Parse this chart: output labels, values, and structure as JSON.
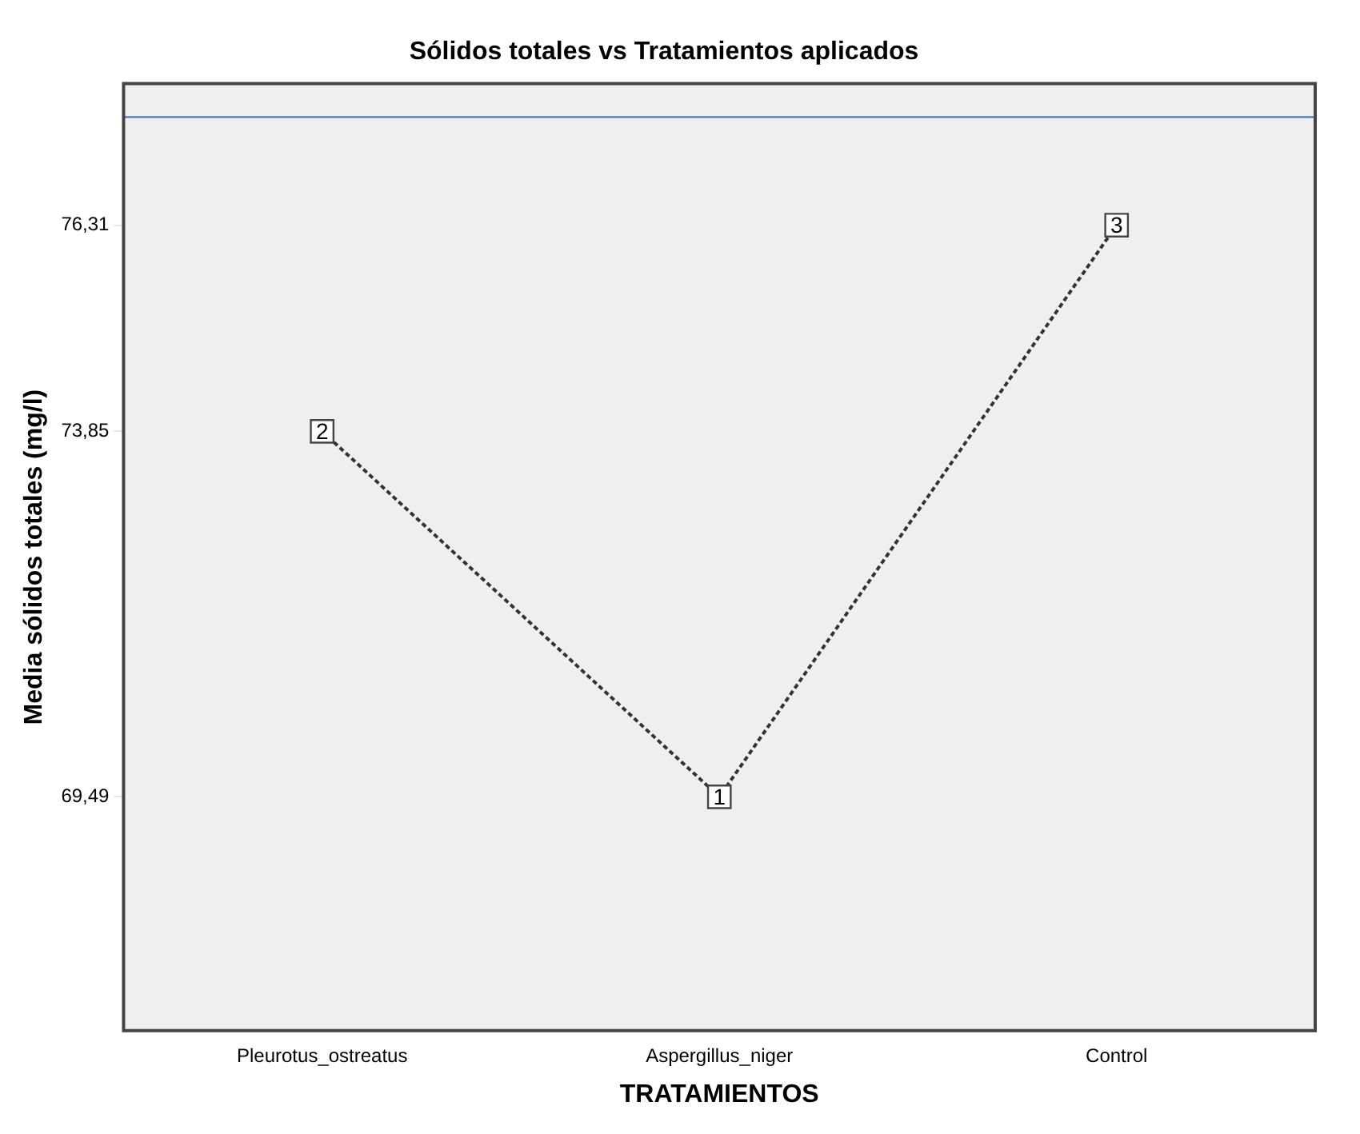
{
  "chart_data": {
    "type": "line",
    "title": "Sólidos totales vs Tratamientos aplicados",
    "xlabel": "TRATAMIENTOS",
    "ylabel": "Media sólidos totales (mg/l)",
    "categories": [
      "Pleurotus_ostreatus",
      "Aspergillus_niger",
      "Control"
    ],
    "series": [
      {
        "color": "#333333",
        "values": [
          73.85,
          69.49,
          76.31
        ]
      }
    ],
    "ylim": [
      66.7,
      78.0
    ],
    "yticks": [
      {
        "value": 69.49,
        "label": "69,49"
      },
      {
        "value": 73.85,
        "label": "73,85"
      },
      {
        "value": 76.31,
        "label": "76,31"
      }
    ],
    "ref_lines": [
      {
        "axis": "y",
        "value": 77.6,
        "color": "#4a78c8"
      }
    ],
    "annotations": [
      {
        "text": "2",
        "x": "Pleurotus_ostreatus",
        "y": 73.85
      },
      {
        "text": "1",
        "x": "Aspergillus_niger",
        "y": 69.49
      },
      {
        "text": "3",
        "x": "Control",
        "y": 76.31
      }
    ],
    "grid": false,
    "legend": false,
    "marker": "square",
    "line_style": "dotted"
  }
}
